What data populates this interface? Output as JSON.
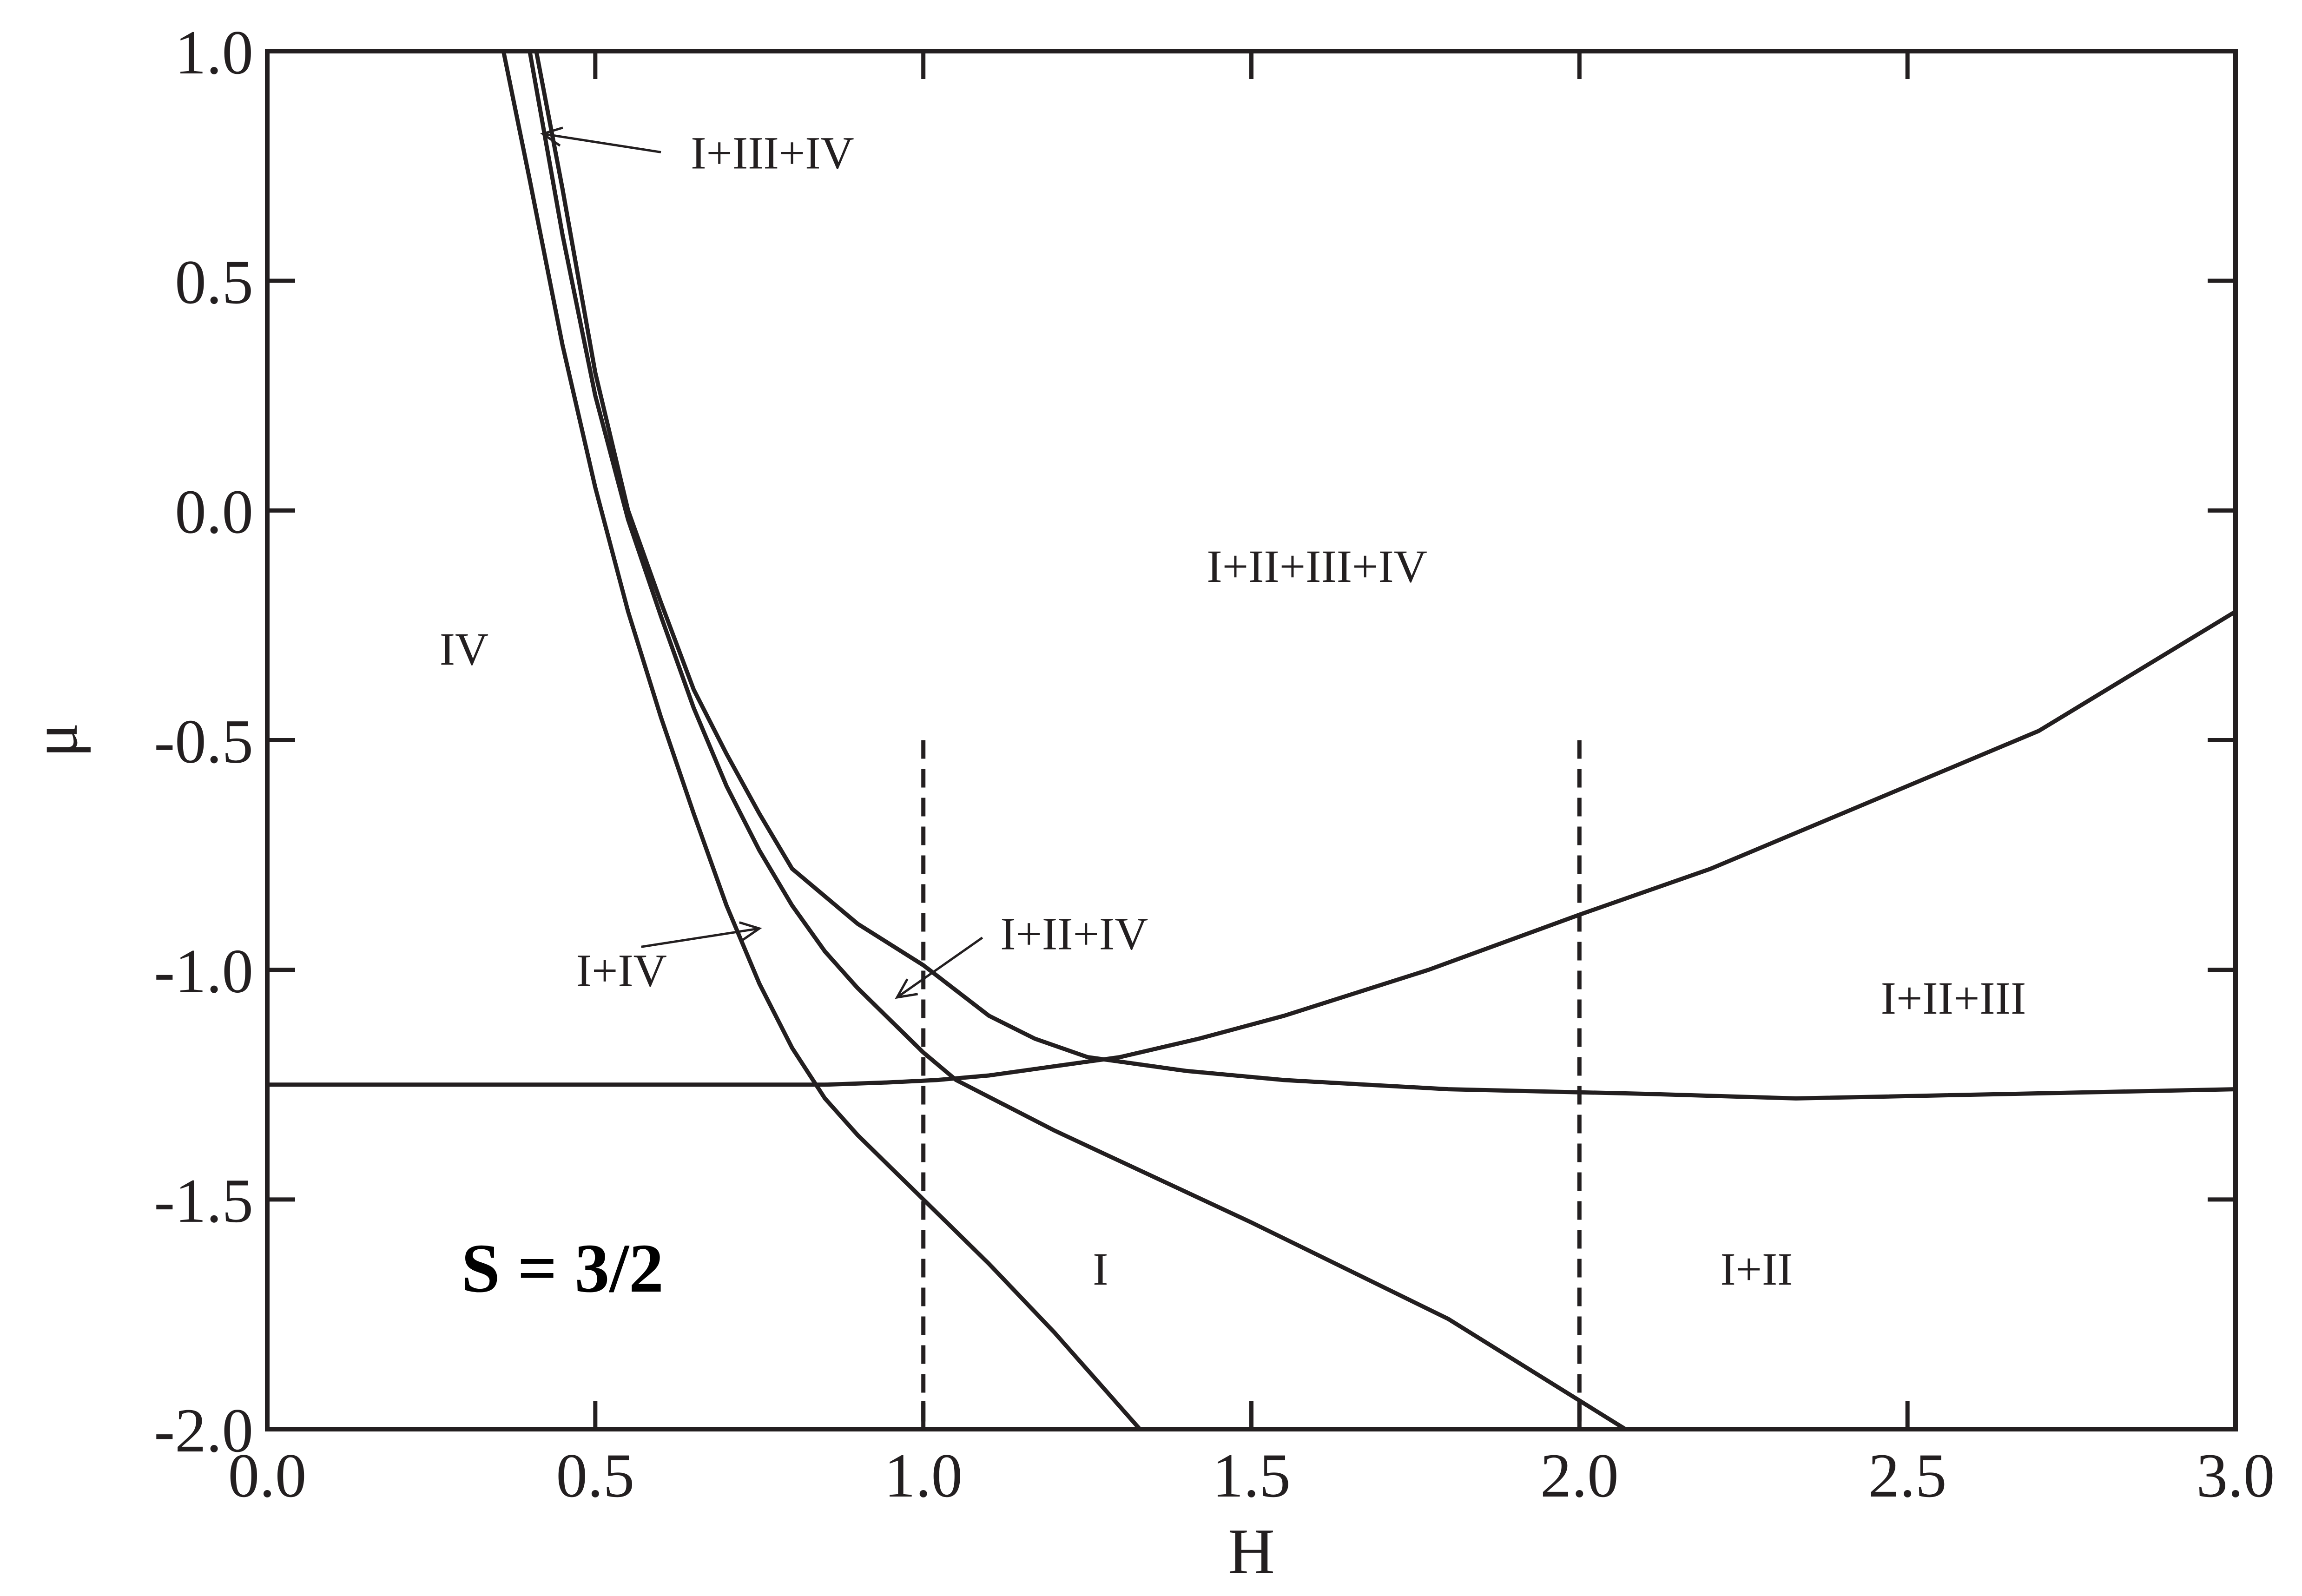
{
  "chart_data": {
    "type": "line",
    "title": "",
    "xlabel": "H",
    "ylabel": "μ",
    "xlim": [
      0.0,
      3.0
    ],
    "ylim": [
      -2.0,
      1.0
    ],
    "grid": false,
    "x_ticks": [
      0.0,
      0.5,
      1.0,
      1.5,
      2.0,
      2.5,
      3.0
    ],
    "y_ticks": [
      1.0,
      0.5,
      0.0,
      -0.5,
      -1.0,
      -1.5,
      -2.0
    ],
    "x_tick_labels": [
      "0.0",
      "0.5",
      "1.0",
      "1.5",
      "2.0",
      "2.5",
      "3.0"
    ],
    "y_tick_labels": [
      "1.0",
      "0.5",
      "0.0",
      "-0.5",
      "-1.0",
      "-1.5",
      "-2.0"
    ],
    "series": [
      {
        "style": "solid",
        "points": [
          [
            0.36,
            1.0
          ],
          [
            0.4,
            0.72
          ],
          [
            0.45,
            0.36
          ],
          [
            0.5,
            0.05
          ],
          [
            0.55,
            -0.22
          ],
          [
            0.6,
            -0.45
          ],
          [
            0.65,
            -0.66
          ],
          [
            0.7,
            -0.86
          ],
          [
            0.75,
            -1.03
          ],
          [
            0.8,
            -1.17
          ],
          [
            0.85,
            -1.28
          ],
          [
            0.9,
            -1.36
          ],
          [
            1.0,
            -1.5
          ],
          [
            1.1,
            -1.64
          ],
          [
            1.2,
            -1.79
          ],
          [
            1.33,
            -2.0
          ]
        ]
      },
      {
        "style": "solid",
        "points": [
          [
            0.4,
            1.0
          ],
          [
            0.45,
            0.6
          ],
          [
            0.5,
            0.25
          ],
          [
            0.55,
            -0.02
          ],
          [
            0.6,
            -0.23
          ],
          [
            0.65,
            -0.43
          ],
          [
            0.7,
            -0.6
          ],
          [
            0.75,
            -0.74
          ],
          [
            0.8,
            -0.86
          ],
          [
            0.85,
            -0.96
          ],
          [
            0.9,
            -1.04
          ],
          [
            1.0,
            -1.18
          ],
          [
            1.05,
            -1.24
          ],
          [
            1.2,
            -1.35
          ],
          [
            1.5,
            -1.55
          ],
          [
            1.8,
            -1.76
          ],
          [
            2.07,
            -2.0
          ]
        ]
      },
      {
        "style": "solid",
        "points": [
          [
            0.41,
            1.0
          ],
          [
            0.45,
            0.7
          ],
          [
            0.5,
            0.3
          ],
          [
            0.55,
            0.0
          ],
          [
            0.6,
            -0.2
          ],
          [
            0.65,
            -0.39
          ],
          [
            0.7,
            -0.53
          ],
          [
            0.75,
            -0.66
          ],
          [
            0.8,
            -0.78
          ],
          [
            0.9,
            -0.9
          ],
          [
            1.0,
            -0.99
          ],
          [
            1.1,
            -1.1
          ],
          [
            1.17,
            -1.15
          ],
          [
            1.25,
            -1.19
          ],
          [
            1.4,
            -1.22
          ],
          [
            1.55,
            -1.24
          ],
          [
            1.8,
            -1.26
          ],
          [
            2.1,
            -1.27
          ],
          [
            2.33,
            -1.28
          ],
          [
            3.0,
            -1.26
          ]
        ]
      },
      {
        "style": "solid",
        "points": [
          [
            0.0,
            -1.25
          ],
          [
            0.3,
            -1.25
          ],
          [
            0.6,
            -1.25
          ],
          [
            0.85,
            -1.25
          ],
          [
            0.95,
            -1.245
          ],
          [
            1.02,
            -1.24
          ],
          [
            1.1,
            -1.23
          ],
          [
            1.2,
            -1.21
          ],
          [
            1.3,
            -1.19
          ],
          [
            1.42,
            -1.15
          ],
          [
            1.55,
            -1.1
          ],
          [
            1.77,
            -1.0
          ],
          [
            2.0,
            -0.88
          ],
          [
            2.2,
            -0.78
          ],
          [
            2.4,
            -0.66
          ],
          [
            2.7,
            -0.48
          ],
          [
            3.0,
            -0.22
          ]
        ]
      },
      {
        "style": "dashed",
        "points": [
          [
            1.0,
            -0.5
          ],
          [
            1.0,
            -2.0
          ]
        ]
      },
      {
        "style": "dashed",
        "points": [
          [
            2.0,
            -0.5
          ],
          [
            2.0,
            -2.0
          ]
        ]
      }
    ],
    "annotations": [
      {
        "text": "IV",
        "x": 0.3,
        "y": -0.3
      },
      {
        "text": "I+II+III+IV",
        "x": 1.6,
        "y": -0.12
      },
      {
        "text": "I+III+IV",
        "x": 0.77,
        "y": 0.78
      },
      {
        "text": "I+IV",
        "x": 0.54,
        "y": -1.0
      },
      {
        "text": "I+II+IV",
        "x": 1.23,
        "y": -0.92
      },
      {
        "text": "I+II+III",
        "x": 2.57,
        "y": -1.06
      },
      {
        "text": "I",
        "x": 1.27,
        "y": -1.65
      },
      {
        "text": "I+II",
        "x": 2.27,
        "y": -1.65
      },
      {
        "text": "S = 3/2",
        "x": 0.45,
        "y": -1.65
      }
    ],
    "pointers": [
      {
        "label": "I+III+IV",
        "from": [
          0.6,
          0.78
        ],
        "to": [
          0.42,
          0.82
        ]
      },
      {
        "label": "I+IV",
        "from": [
          0.57,
          -0.95
        ],
        "to": [
          0.75,
          -0.91
        ]
      },
      {
        "label": "I+II+IV",
        "from": [
          1.09,
          -0.93
        ],
        "to": [
          0.96,
          -1.06
        ]
      }
    ]
  }
}
